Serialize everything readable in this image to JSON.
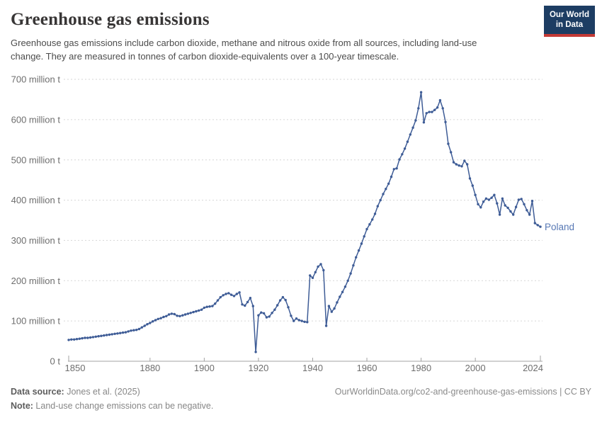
{
  "header": {
    "title": "Greenhouse gas emissions",
    "subtitle": "Greenhouse gas emissions include carbon dioxide, methane and nitrous oxide from all sources, including land-use change. They are measured in tonnes of carbon dioxide-equivalents over a 100-year timescale.",
    "logo": {
      "line1": "Our World",
      "line2": "in Data",
      "bg_color": "#1d3d63",
      "bar_color": "#c43a36"
    }
  },
  "chart_data": {
    "type": "line",
    "title": "Greenhouse gas emissions",
    "entity": "Poland",
    "unit": "million t",
    "grid": true,
    "legend_position": "end-of-line-label",
    "x": {
      "range": [
        1850,
        2024
      ],
      "tick_years": [
        1850,
        1880,
        1900,
        1920,
        1940,
        1960,
        1980,
        2000,
        2024
      ],
      "tick_labels": [
        "1850",
        "1880",
        "1900",
        "1920",
        "1940",
        "1960",
        "1980",
        "2000",
        "2024"
      ]
    },
    "y": {
      "ylim": [
        0,
        700
      ],
      "ticks": [
        0,
        100,
        200,
        300,
        400,
        500,
        600,
        700
      ],
      "tick_label_suffix": " million t",
      "zero_label": "0 t"
    },
    "series": [
      {
        "name": "Poland",
        "start_year": 1850,
        "values": [
          53,
          54,
          54,
          55,
          56,
          57,
          58,
          58,
          59,
          60,
          61,
          62,
          63,
          64,
          65,
          66,
          67,
          68,
          69,
          70,
          71,
          72,
          74,
          76,
          77,
          78,
          80,
          84,
          88,
          92,
          95,
          99,
          102,
          105,
          107,
          110,
          112,
          116,
          118,
          117,
          113,
          112,
          114,
          116,
          118,
          120,
          122,
          124,
          126,
          128,
          133,
          135,
          136,
          137,
          143,
          151,
          159,
          164,
          167,
          169,
          165,
          162,
          167,
          171,
          141,
          138,
          147,
          157,
          137,
          23,
          114,
          121,
          119,
          109,
          111,
          120,
          128,
          139,
          151,
          159,
          152,
          134,
          113,
          100,
          106,
          102,
          100,
          98,
          97,
          213,
          207,
          221,
          235,
          241,
          226,
          88,
          137,
          123,
          131,
          146,
          160,
          172,
          185,
          200,
          218,
          238,
          258,
          275,
          292,
          310,
          328,
          340,
          352,
          366,
          385,
          400,
          415,
          428,
          441,
          458,
          477,
          479,
          501,
          514,
          528,
          545,
          563,
          580,
          598,
          628,
          668,
          593,
          616,
          619,
          619,
          624,
          630,
          648,
          628,
          594,
          540,
          519,
          494,
          489,
          486,
          484,
          498,
          489,
          454,
          436,
          413,
          390,
          382,
          396,
          404,
          401,
          406,
          413,
          392,
          364,
          404,
          387,
          381,
          372,
          364,
          383,
          401,
          403,
          390,
          375,
          364,
          398,
          343,
          338,
          334
        ]
      }
    ],
    "colors": {
      "line": "#3e5c96",
      "series_label": "#5778b4",
      "grid": "#d6d6d6",
      "axis": "#a3a3a3",
      "tick_text": "#6e6e6e"
    }
  },
  "footer": {
    "source_label": "Data source:",
    "source_value": " Jones et al. (2025)",
    "note_label": "Note:",
    "note_value": " Land-use change emissions can be negative.",
    "url_text": "OurWorldinData.org/co2-and-greenhouse-gas-emissions | CC BY"
  }
}
